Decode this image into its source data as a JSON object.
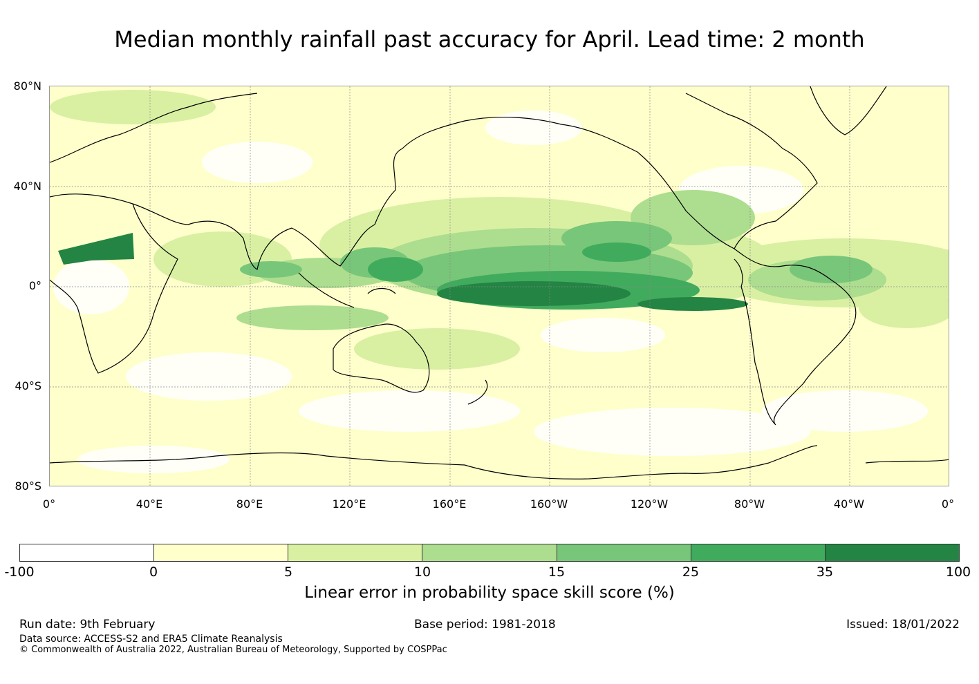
{
  "title": "Median monthly rainfall past accuracy for April. Lead time: 2 month",
  "map": {
    "lat_labels": [
      "80°N",
      "40°N",
      "0°",
      "40°S",
      "80°S"
    ],
    "lon_labels": [
      "0°",
      "40°E",
      "80°E",
      "120°E",
      "160°E",
      "160°W",
      "120°W",
      "80°W",
      "40°W",
      "0°"
    ]
  },
  "colorbar": {
    "ticks": [
      "-100",
      "0",
      "5",
      "10",
      "15",
      "25",
      "35",
      "100"
    ],
    "colors": [
      "#ffffff",
      "#ffffcc",
      "#d9f0a3",
      "#addd8e",
      "#78c679",
      "#41ab5d",
      "#238443"
    ],
    "label": "Linear error in probability space skill score (%)"
  },
  "footer": {
    "run_date": "Run date: 9th February",
    "base_period": "Base period: 1981-2018",
    "issued": "Issued: 18/01/2022",
    "data_source": "Data source: ACCESS-S2 and ERA5 Climate Reanalysis",
    "copyright": "© Commonwealth of Australia 2022, Australian Bureau of Meteorology, Supported by COSPPac"
  }
}
